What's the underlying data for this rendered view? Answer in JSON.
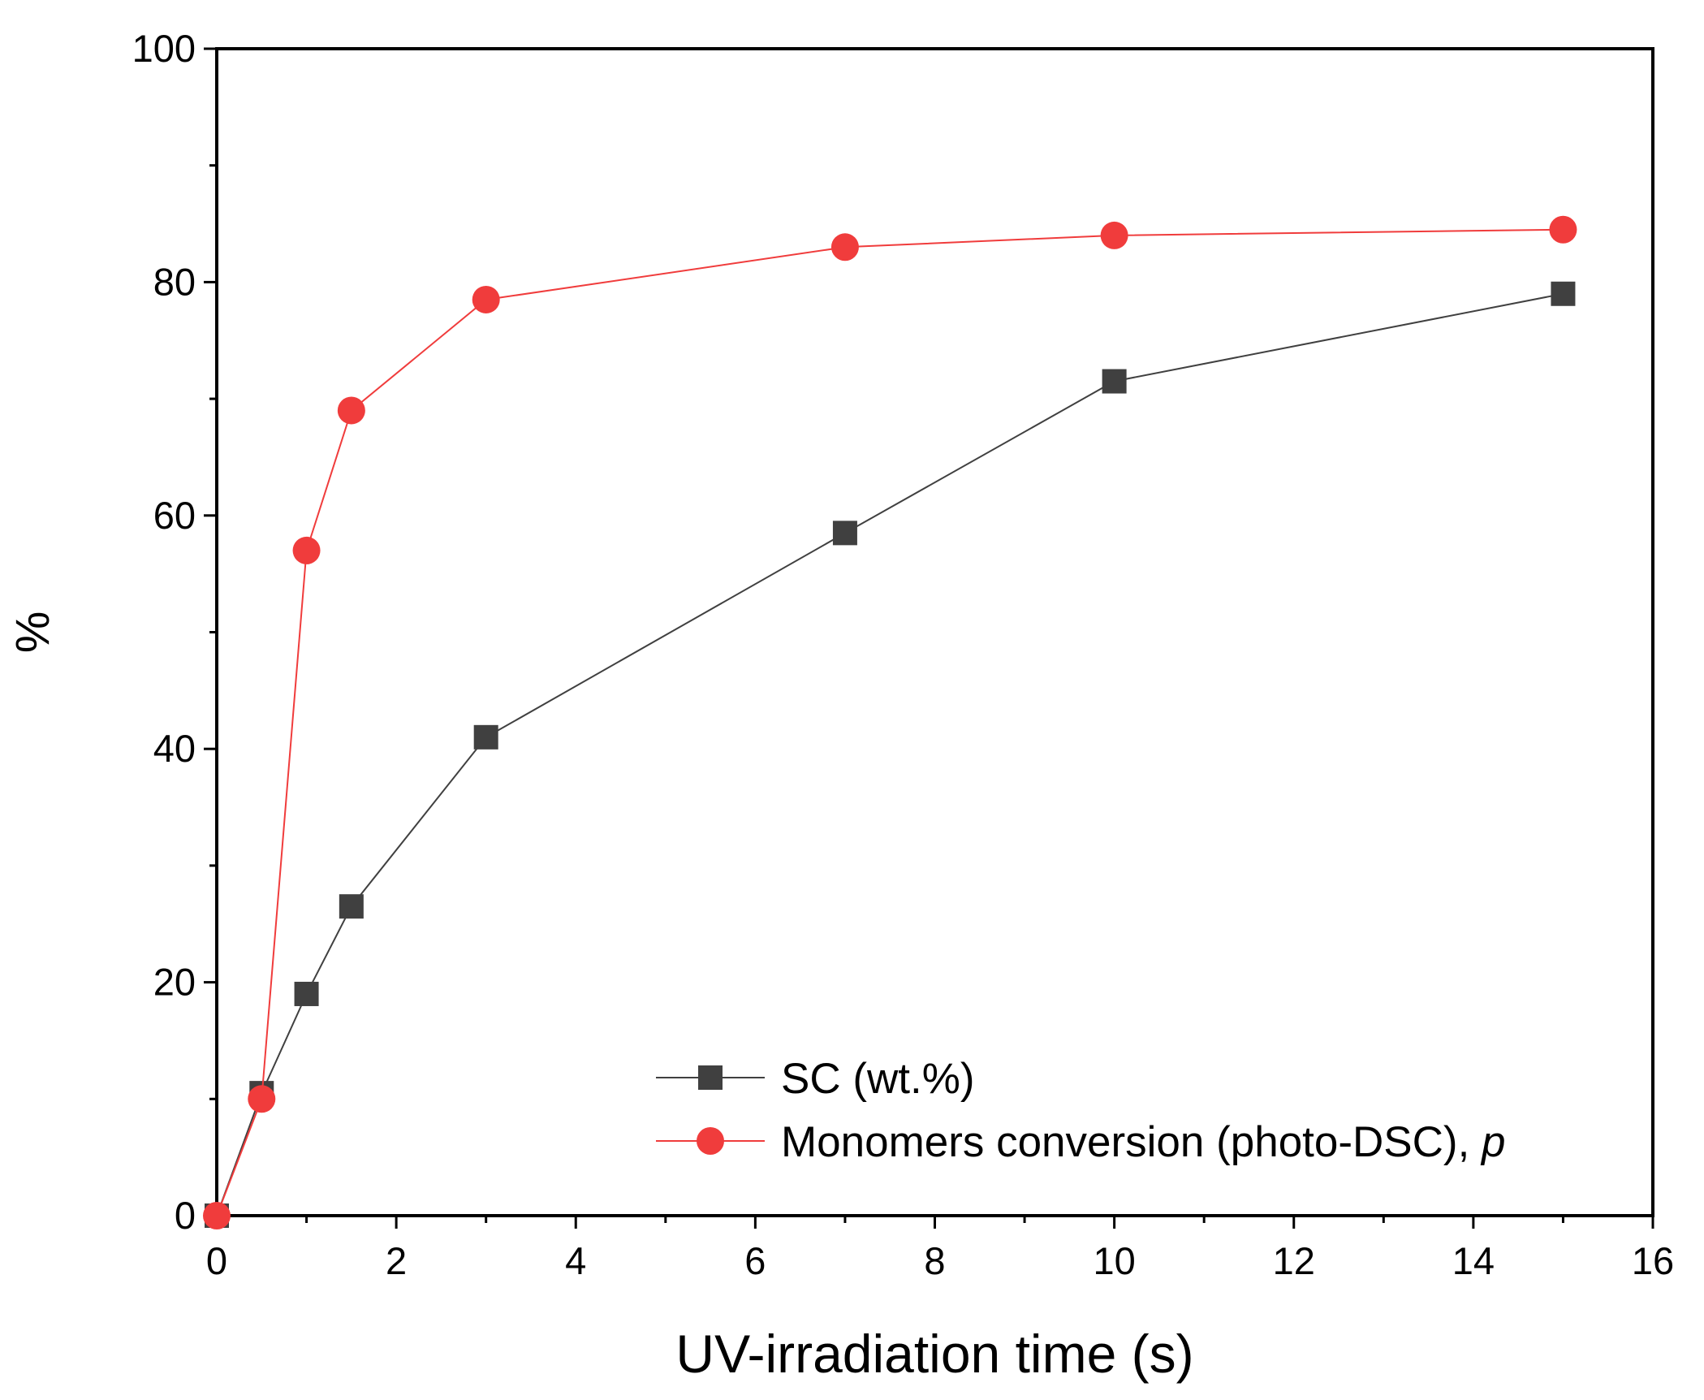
{
  "chart_data": {
    "type": "line",
    "title": "",
    "xlabel": "UV-irradiation time (s)",
    "ylabel": "%",
    "xlim": [
      0,
      16
    ],
    "ylim": [
      0,
      100
    ],
    "x_ticks": [
      0,
      2,
      4,
      6,
      8,
      10,
      12,
      14,
      16
    ],
    "y_ticks": [
      0,
      20,
      40,
      60,
      80,
      100
    ],
    "x_tick_labels": [
      "0",
      "2",
      "4",
      "6",
      "8",
      "10",
      "12",
      "14",
      "16"
    ],
    "y_tick_labels": [
      "0",
      "20",
      "40",
      "60",
      "80",
      "100"
    ],
    "grid": false,
    "legend_position": "bottom-right",
    "series": [
      {
        "name": "SC (wt.%)",
        "marker": "square",
        "color": "#404040",
        "x": [
          0,
          0.5,
          1,
          1.5,
          3,
          7,
          10,
          15
        ],
        "values": [
          0,
          10.5,
          19,
          26.5,
          41,
          58.5,
          71.5,
          79
        ]
      },
      {
        "name": "Monomers conversion (photo-DSC), ",
        "name_suffix": "p",
        "marker": "circle",
        "color": "#f03c3c",
        "x": [
          0,
          0.5,
          1,
          1.5,
          3,
          7,
          10,
          15
        ],
        "values": [
          0,
          10,
          57,
          69,
          78.5,
          83,
          84,
          84.5
        ]
      }
    ]
  }
}
